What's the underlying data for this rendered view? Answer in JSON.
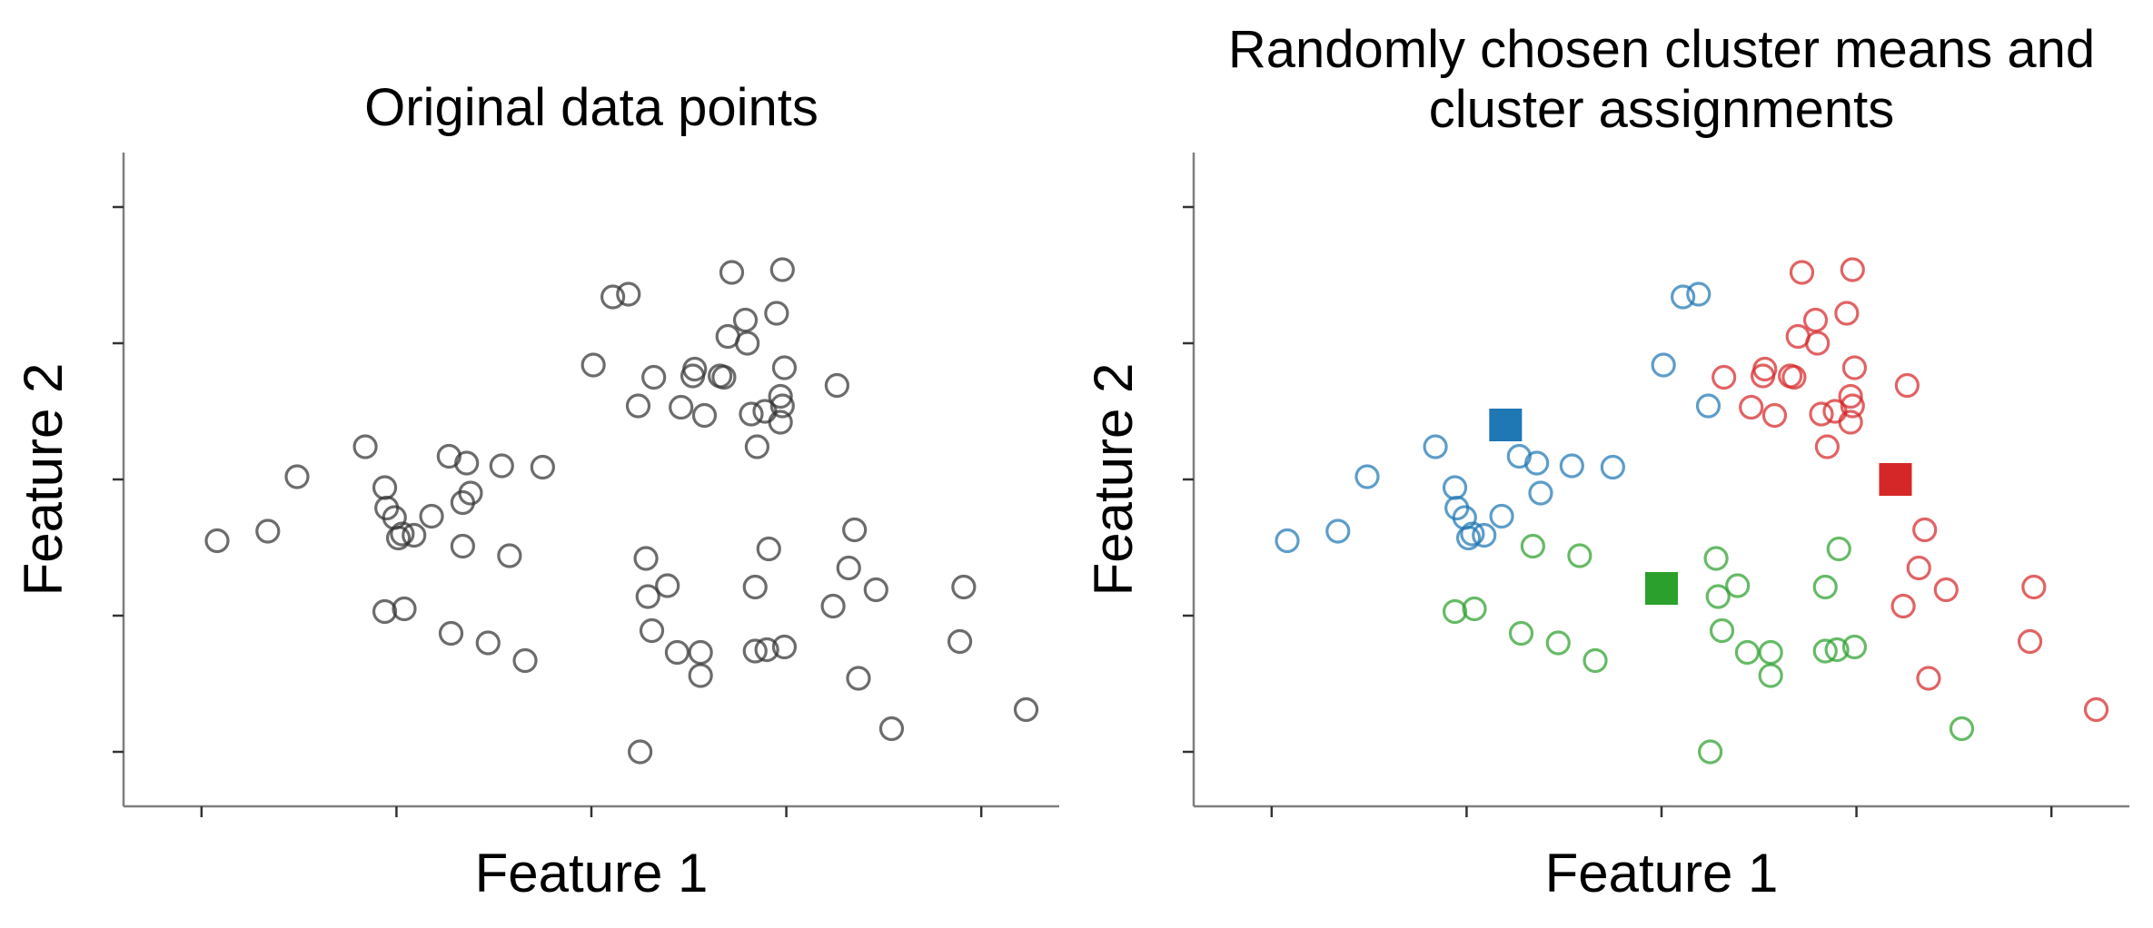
{
  "chart_data": [
    {
      "type": "scatter",
      "title_lines": [
        "Original data points"
      ],
      "xlabel": "Feature 1",
      "ylabel": "Feature 2",
      "xlim": [
        -2.2,
        2.6
      ],
      "ylim": [
        -0.4,
        4.4
      ],
      "xticks": [
        -1.8,
        -0.8,
        0.2,
        1.2,
        2.2
      ],
      "yticks": [
        0.0,
        1.0,
        2.0,
        3.0,
        4.0
      ],
      "tick_labels_shown": false,
      "grid": false,
      "legend": null,
      "marker": "open-circle",
      "series": [
        {
          "color": "#333333",
          "points": [
            [
              -1.72,
              1.55
            ],
            [
              -1.46,
              1.62
            ],
            [
              -1.31,
              2.02
            ],
            [
              -0.96,
              2.24
            ],
            [
              -0.86,
              1.94
            ],
            [
              -0.85,
              1.79
            ],
            [
              -0.81,
              1.72
            ],
            [
              -0.79,
              1.57
            ],
            [
              -0.77,
              1.6
            ],
            [
              -0.71,
              1.59
            ],
            [
              -0.62,
              1.73
            ],
            [
              -0.53,
              2.17
            ],
            [
              -0.46,
              1.51
            ],
            [
              -0.46,
              1.83
            ],
            [
              -0.42,
              1.9
            ],
            [
              -0.44,
              2.12
            ],
            [
              -0.26,
              2.1
            ],
            [
              -0.22,
              1.44
            ],
            [
              -0.05,
              2.09
            ],
            [
              -0.86,
              1.03
            ],
            [
              -0.76,
              1.05
            ],
            [
              -0.52,
              0.87
            ],
            [
              -0.33,
              0.8
            ],
            [
              -0.14,
              0.67
            ],
            [
              0.21,
              2.84
            ],
            [
              0.31,
              3.34
            ],
            [
              0.39,
              3.36
            ],
            [
              0.44,
              2.54
            ],
            [
              0.52,
              2.75
            ],
            [
              0.66,
              2.53
            ],
            [
              0.72,
              2.76
            ],
            [
              0.73,
              2.81
            ],
            [
              0.78,
              2.47
            ],
            [
              0.86,
              2.76
            ],
            [
              0.88,
              2.75
            ],
            [
              0.9,
              3.05
            ],
            [
              0.92,
              3.52
            ],
            [
              0.99,
              3.17
            ],
            [
              1.0,
              3.0
            ],
            [
              1.02,
              2.48
            ],
            [
              1.05,
              2.24
            ],
            [
              1.09,
              2.5
            ],
            [
              1.15,
              3.22
            ],
            [
              1.17,
              2.42
            ],
            [
              1.18,
              2.54
            ],
            [
              1.17,
              2.61
            ],
            [
              1.19,
              2.82
            ],
            [
              1.18,
              3.54
            ],
            [
              1.46,
              2.69
            ],
            [
              0.48,
              1.42
            ],
            [
              0.49,
              1.14
            ],
            [
              0.51,
              0.89
            ],
            [
              0.59,
              1.22
            ],
            [
              0.64,
              0.73
            ],
            [
              0.76,
              0.73
            ],
            [
              0.76,
              0.56
            ],
            [
              1.04,
              1.21
            ],
            [
              1.04,
              0.74
            ],
            [
              1.1,
              0.75
            ],
            [
              1.11,
              1.49
            ],
            [
              1.19,
              0.77
            ],
            [
              1.44,
              1.07
            ],
            [
              1.52,
              1.35
            ],
            [
              1.55,
              1.63
            ],
            [
              1.57,
              0.54
            ],
            [
              1.66,
              1.19
            ],
            [
              1.74,
              0.17
            ],
            [
              2.09,
              0.81
            ],
            [
              2.11,
              1.21
            ],
            [
              2.43,
              0.31
            ],
            [
              0.45,
              0.0
            ]
          ]
        }
      ]
    },
    {
      "type": "scatter",
      "title_lines": [
        "Randomly chosen cluster means and",
        "cluster assignments"
      ],
      "xlabel": "Feature 1",
      "ylabel": "Feature 2",
      "xlim": [
        -2.2,
        2.6
      ],
      "ylim": [
        -0.4,
        4.4
      ],
      "xticks": [
        -1.8,
        -0.8,
        0.2,
        1.2,
        2.2
      ],
      "yticks": [
        0.0,
        1.0,
        2.0,
        3.0,
        4.0
      ],
      "tick_labels_shown": false,
      "grid": false,
      "legend": null,
      "marker": "open-circle",
      "series": [
        {
          "color": "#1f77b4",
          "points": [
            [
              -1.72,
              1.55
            ],
            [
              -1.46,
              1.62
            ],
            [
              -1.31,
              2.02
            ],
            [
              -0.96,
              2.24
            ],
            [
              -0.86,
              1.94
            ],
            [
              -0.85,
              1.79
            ],
            [
              -0.81,
              1.72
            ],
            [
              -0.79,
              1.57
            ],
            [
              -0.77,
              1.6
            ],
            [
              -0.71,
              1.59
            ],
            [
              -0.62,
              1.73
            ],
            [
              -0.53,
              2.17
            ],
            [
              -0.42,
              1.9
            ],
            [
              -0.44,
              2.12
            ],
            [
              -0.26,
              2.1
            ],
            [
              -0.05,
              2.09
            ],
            [
              0.21,
              2.84
            ],
            [
              0.31,
              3.34
            ],
            [
              0.39,
              3.36
            ],
            [
              0.44,
              2.54
            ]
          ]
        },
        {
          "color": "#2ca02c",
          "points": [
            [
              -0.86,
              1.03
            ],
            [
              -0.76,
              1.05
            ],
            [
              -0.52,
              0.87
            ],
            [
              -0.33,
              0.8
            ],
            [
              -0.14,
              0.67
            ],
            [
              -0.46,
              1.51
            ],
            [
              -0.22,
              1.44
            ],
            [
              0.48,
              1.42
            ],
            [
              0.49,
              1.14
            ],
            [
              0.51,
              0.89
            ],
            [
              0.59,
              1.22
            ],
            [
              0.64,
              0.73
            ],
            [
              0.76,
              0.73
            ],
            [
              0.76,
              0.56
            ],
            [
              1.04,
              1.21
            ],
            [
              1.04,
              0.74
            ],
            [
              1.1,
              0.75
            ],
            [
              1.11,
              1.49
            ],
            [
              1.19,
              0.77
            ],
            [
              1.74,
              0.17
            ],
            [
              0.45,
              0.0
            ]
          ]
        },
        {
          "color": "#d62728",
          "points": [
            [
              0.52,
              2.75
            ],
            [
              0.66,
              2.53
            ],
            [
              0.72,
              2.76
            ],
            [
              0.73,
              2.81
            ],
            [
              0.78,
              2.47
            ],
            [
              0.86,
              2.76
            ],
            [
              0.88,
              2.75
            ],
            [
              0.9,
              3.05
            ],
            [
              0.92,
              3.52
            ],
            [
              0.99,
              3.17
            ],
            [
              1.0,
              3.0
            ],
            [
              1.02,
              2.48
            ],
            [
              1.05,
              2.24
            ],
            [
              1.09,
              2.5
            ],
            [
              1.15,
              3.22
            ],
            [
              1.17,
              2.42
            ],
            [
              1.18,
              2.54
            ],
            [
              1.17,
              2.61
            ],
            [
              1.19,
              2.82
            ],
            [
              1.18,
              3.54
            ],
            [
              1.46,
              2.69
            ],
            [
              1.44,
              1.07
            ],
            [
              1.52,
              1.35
            ],
            [
              1.55,
              1.63
            ],
            [
              1.57,
              0.54
            ],
            [
              1.66,
              1.19
            ],
            [
              2.09,
              0.81
            ],
            [
              2.11,
              1.21
            ],
            [
              2.43,
              0.31
            ]
          ]
        }
      ],
      "centroids": [
        {
          "color": "#1f77b4",
          "point": [
            -0.6,
            2.4
          ]
        },
        {
          "color": "#d62728",
          "point": [
            1.4,
            2.0
          ]
        },
        {
          "color": "#2ca02c",
          "point": [
            0.2,
            1.2
          ]
        }
      ]
    }
  ],
  "colors": {
    "axis": "#7f7f7f",
    "text": "#000000"
  }
}
